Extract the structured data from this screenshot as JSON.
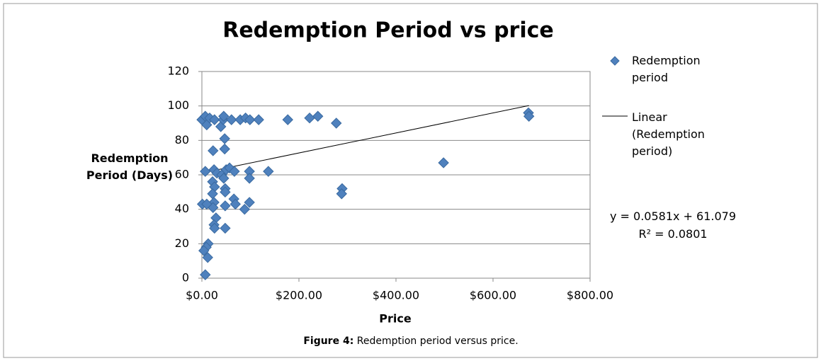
{
  "chart_data": {
    "type": "scatter",
    "title": "Redemption Period vs price",
    "x_label": "Price",
    "y_label": "Redemption Period (Days)",
    "caption_label": "Figure 4:",
    "caption_text": "Redemption period versus price.",
    "xlim": [
      0,
      800
    ],
    "xticks": [
      {
        "value": 0,
        "label": "$0.00"
      },
      {
        "value": 200,
        "label": "$200.00"
      },
      {
        "value": 400,
        "label": "$400.00"
      },
      {
        "value": 600,
        "label": "$600.00"
      },
      {
        "value": 800,
        "label": "$800.00"
      }
    ],
    "ylim": [
      0,
      120
    ],
    "yticks": [
      0,
      20,
      40,
      60,
      80,
      100,
      120
    ],
    "grid": true,
    "series": [
      {
        "name": "Redemption period",
        "color": "#4f81bd",
        "x": [
          0,
          7,
          10,
          16,
          26,
          39,
          44,
          45,
          61,
          79,
          90,
          99,
          117,
          177,
          222,
          239,
          277,
          673,
          674,
          47,
          47,
          23,
          7,
          25,
          31,
          41,
          50,
          57,
          67,
          98,
          98,
          137,
          22,
          26,
          45,
          48,
          48,
          22,
          66,
          69,
          25,
          23,
          48,
          88,
          98,
          1,
          10,
          29,
          25,
          26,
          48,
          289,
          288,
          498,
          13,
          9,
          4,
          12,
          7
        ],
        "values": [
          92,
          94,
          89,
          93,
          92,
          88,
          92,
          94,
          92,
          92,
          93,
          92,
          92,
          92,
          93,
          94,
          90,
          96,
          94,
          81,
          75,
          74,
          62,
          63,
          61,
          60,
          63,
          64,
          62,
          62,
          58,
          62,
          56,
          53,
          58,
          52,
          50,
          49,
          46,
          43,
          44,
          41,
          42,
          40,
          44,
          43,
          43,
          35,
          31,
          29,
          29,
          52,
          49,
          67,
          20,
          18,
          16,
          12,
          2
        ]
      }
    ],
    "trendline": {
      "name": "Linear (Redemption period)",
      "slope": 0.0581,
      "intercept": 61.079,
      "equation": "y = 0.0581x + 61.079",
      "r_squared": "R² = 0.0801"
    }
  }
}
